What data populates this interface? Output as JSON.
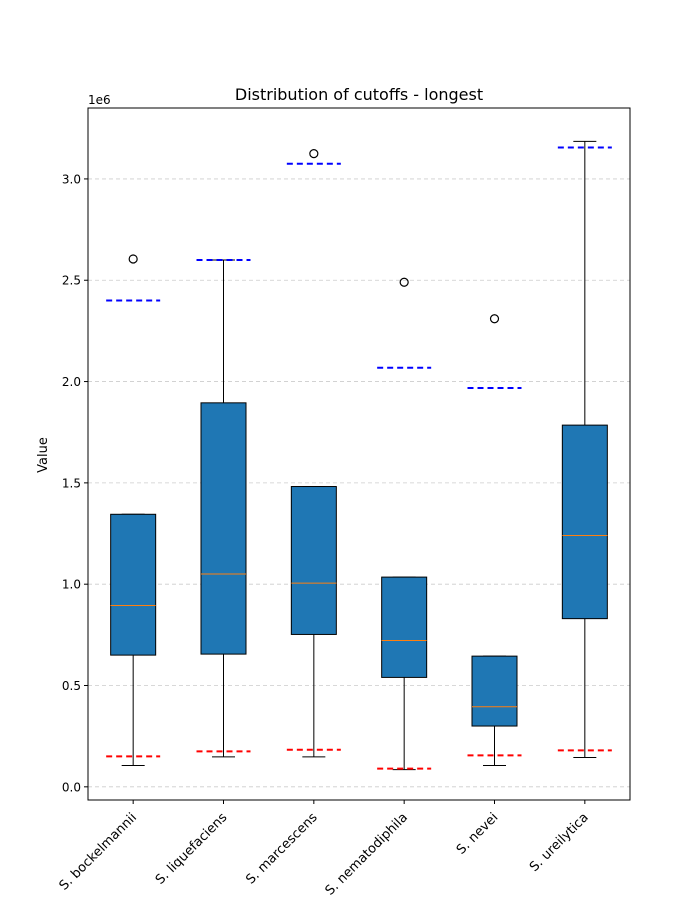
{
  "chart_data": {
    "type": "box",
    "title": "Distribution of cutoffs - longest",
    "xlabel": "",
    "ylabel": "Value",
    "y_offset_label": "1e6",
    "ylim": [
      -65000,
      3350000
    ],
    "yticks": [
      0,
      500000,
      1000000,
      1500000,
      2000000,
      2500000,
      3000000
    ],
    "ytick_labels": [
      "0.0",
      "0.5",
      "1.0",
      "1.5",
      "2.0",
      "2.5",
      "3.0"
    ],
    "grid": "y-dashed",
    "colors": {
      "box_fill": "#1f77b4",
      "median": "#ff7f0e",
      "upper_ref_line": "#0000ff",
      "lower_ref_line": "#ff0000",
      "grid": "#cccccc"
    },
    "categories": [
      "S. bockelmannii",
      "S. liquefaciens",
      "S. marcescens",
      "S. nematodiphila",
      "S. nevei",
      "S. ureilytica"
    ],
    "boxes": [
      {
        "q1": 650000,
        "median": 895000,
        "q3": 1345000,
        "whisker_low": 105000,
        "whisker_high": 1345000,
        "outliers": [
          2605000
        ],
        "upper_ref": 2400000,
        "lower_ref": 150000
      },
      {
        "q1": 655000,
        "median": 1050000,
        "q3": 1895000,
        "whisker_low": 148000,
        "whisker_high": 2600000,
        "outliers": [],
        "upper_ref": 2600000,
        "lower_ref": 175000
      },
      {
        "q1": 752000,
        "median": 1005000,
        "q3": 1482000,
        "whisker_low": 148000,
        "whisker_high": 1482000,
        "outliers": [
          3125000
        ],
        "upper_ref": 3075000,
        "lower_ref": 183000
      },
      {
        "q1": 540000,
        "median": 722000,
        "q3": 1035000,
        "whisker_low": 85000,
        "whisker_high": 1035000,
        "outliers": [
          2490000
        ],
        "upper_ref": 2068000,
        "lower_ref": 90000
      },
      {
        "q1": 300000,
        "median": 395000,
        "q3": 645000,
        "whisker_low": 105000,
        "whisker_high": 645000,
        "outliers": [
          2310000
        ],
        "upper_ref": 1968000,
        "lower_ref": 155000
      },
      {
        "q1": 830000,
        "median": 1240000,
        "q3": 1785000,
        "whisker_low": 145000,
        "whisker_high": 3185000,
        "outliers": [],
        "upper_ref": 3155000,
        "lower_ref": 180000
      }
    ]
  }
}
